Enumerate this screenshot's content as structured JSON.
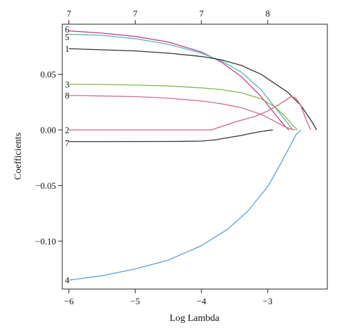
{
  "chart_data": {
    "type": "line",
    "title": "",
    "xlabel": "Log Lambda",
    "ylabel": "Coefficients",
    "xlim": [
      -6.1,
      -2.1
    ],
    "ylim": [
      -0.143,
      0.095
    ],
    "x_ticks": [
      -6,
      -5,
      -4,
      -3
    ],
    "x_tick_labels": [
      "−6",
      "−5",
      "−4",
      "−3"
    ],
    "y_ticks": [
      0.05,
      0.0,
      -0.05,
      -0.1
    ],
    "y_tick_labels": [
      "0.05",
      "0.00",
      "−0.05",
      "−0.10"
    ],
    "top_axis": {
      "x": [
        -6,
        -5,
        -4,
        -3
      ],
      "labels": [
        "7",
        "7",
        "7",
        "8"
      ]
    },
    "grid": false,
    "legend": "none",
    "series": [
      {
        "name": "6",
        "color": "#c23c8c",
        "x": [
          -6.0,
          -5.5,
          -5.0,
          -4.5,
          -4.0,
          -3.7,
          -3.4,
          -3.1,
          -2.9,
          -2.75,
          -2.68
        ],
        "y": [
          0.089,
          0.087,
          0.084,
          0.079,
          0.07,
          0.061,
          0.048,
          0.03,
          0.015,
          0.004,
          0.0
        ]
      },
      {
        "name": "5",
        "color": "#4fb8a8",
        "x": [
          -6.0,
          -5.5,
          -5.0,
          -4.5,
          -4.0,
          -3.7,
          -3.4,
          -3.1,
          -2.9,
          -2.75,
          -2.62
        ],
        "y": [
          0.086,
          0.085,
          0.082,
          0.077,
          0.069,
          0.062,
          0.052,
          0.036,
          0.021,
          0.01,
          0.0
        ]
      },
      {
        "name": "1",
        "color": "#333333",
        "x": [
          -6.0,
          -5.5,
          -5.0,
          -4.5,
          -4.0,
          -3.7,
          -3.4,
          -3.1,
          -2.9,
          -2.7,
          -2.5,
          -2.35,
          -2.26
        ],
        "y": [
          0.073,
          0.072,
          0.071,
          0.069,
          0.066,
          0.063,
          0.058,
          0.05,
          0.042,
          0.034,
          0.022,
          0.009,
          0.0
        ]
      },
      {
        "name": "3",
        "color": "#7cb84f",
        "x": [
          -6.0,
          -5.5,
          -5.0,
          -4.5,
          -4.0,
          -3.7,
          -3.4,
          -3.1,
          -2.9,
          -2.75,
          -2.62,
          -2.55
        ],
        "y": [
          0.041,
          0.0408,
          0.0403,
          0.0395,
          0.0378,
          0.0362,
          0.0335,
          0.028,
          0.021,
          0.013,
          0.004,
          0.0
        ]
      },
      {
        "name": "8",
        "color": "#d96b8a",
        "x": [
          -6.0,
          -5.5,
          -5.0,
          -4.5,
          -4.0,
          -3.7,
          -3.4,
          -3.1,
          -2.9,
          -2.75,
          -2.63,
          -2.58
        ],
        "y": [
          0.031,
          0.0305,
          0.03,
          0.0285,
          0.026,
          0.0235,
          0.02,
          0.014,
          0.008,
          0.003,
          0.0005,
          0.0
        ]
      },
      {
        "name": "2",
        "color": "#d9607a",
        "x": [
          -6.0,
          -5.0,
          -4.0,
          -3.85,
          -3.7,
          -3.5,
          -3.2,
          -3.0,
          -2.85,
          -2.72,
          -2.65,
          -2.58,
          -2.5,
          -2.42,
          -2.35
        ],
        "y": [
          0.0,
          0.0,
          0.0,
          0.0,
          0.003,
          0.007,
          0.012,
          0.017,
          0.022,
          0.027,
          0.03,
          0.029,
          0.022,
          0.009,
          0.0
        ]
      },
      {
        "name": "7",
        "color": "#333333",
        "x": [
          -6.0,
          -5.0,
          -4.3,
          -4.0,
          -3.8,
          -3.6,
          -3.4,
          -3.2,
          -3.0,
          -2.92
        ],
        "y": [
          -0.0105,
          -0.0104,
          -0.0103,
          -0.01,
          -0.009,
          -0.007,
          -0.005,
          -0.0025,
          -0.0005,
          0.0
        ]
      },
      {
        "name": "4",
        "color": "#5b9fd6",
        "x": [
          -6.0,
          -5.5,
          -5.0,
          -4.5,
          -4.0,
          -3.6,
          -3.3,
          -3.0,
          -2.8,
          -2.65,
          -2.57,
          -2.5
        ],
        "y": [
          -0.135,
          -0.131,
          -0.125,
          -0.117,
          -0.104,
          -0.089,
          -0.073,
          -0.051,
          -0.03,
          -0.013,
          -0.004,
          0.0
        ]
      }
    ]
  }
}
